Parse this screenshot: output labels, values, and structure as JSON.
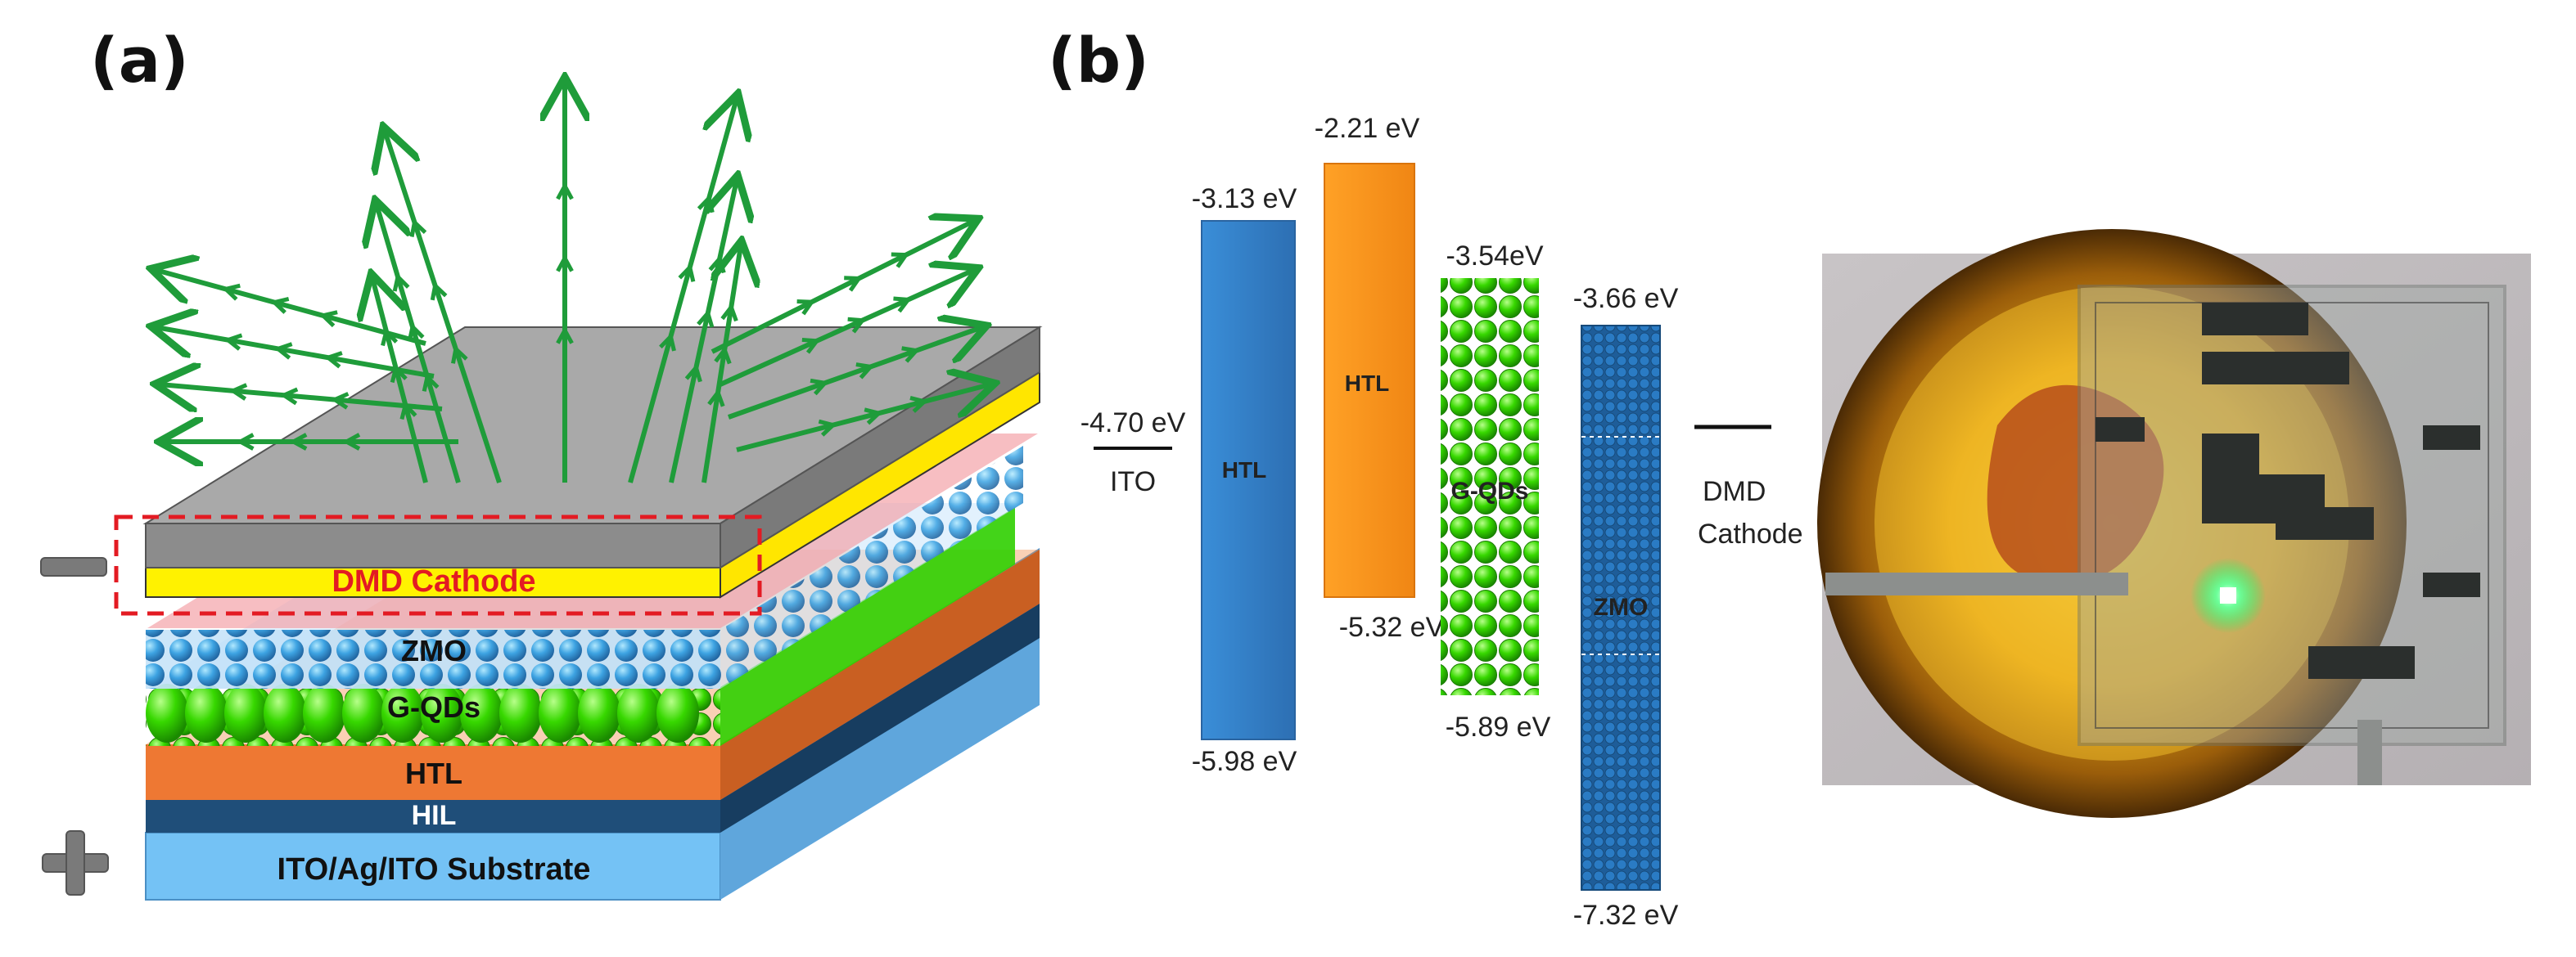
{
  "panels": {
    "a": "(a)",
    "b": "(b)"
  },
  "device_stack": {
    "layers": {
      "cathode": "DMD Cathode",
      "zmo": "ZMO",
      "gqds": "G-QDs",
      "htl": "HTL",
      "hil": "HIL",
      "substrate": "ITO/Ag/ITO Substrate"
    },
    "polarity": {
      "negative": "minus-sign-icon",
      "positive": "plus-sign-icon"
    },
    "colors": {
      "cathode_gray": "#9e9e9e",
      "cathode_yellow": "#fff200",
      "highlight_red": "#e31b23",
      "zmo_blue": "#2e8fd6",
      "qd_green": "#22dd00",
      "htl_orange": "#ee7833",
      "hil_navy": "#1f4e79",
      "substrate_blue": "#74c2f5",
      "emission_green": "#1f9c3a"
    }
  },
  "energy_diagram": {
    "ito": {
      "label": "ITO",
      "level": "-4.70 eV"
    },
    "htl_1": {
      "label": "HTL",
      "top": "-3.13 eV",
      "bottom": "-5.98 eV"
    },
    "htl_2": {
      "label": "HTL",
      "top": "-2.21 eV",
      "bottom": "-5.32 eV"
    },
    "gqds": {
      "label": "G-QDs",
      "top": "-3.54eV",
      "bottom": "-5.89 eV"
    },
    "zmo": {
      "label": "ZMO",
      "top": "-3.66 eV",
      "bottom": "-7.32 eV"
    },
    "cathode": {
      "label_line1": "DMD",
      "label_line2": "Cathode"
    }
  },
  "photo": {
    "alt": "device-photo"
  }
}
